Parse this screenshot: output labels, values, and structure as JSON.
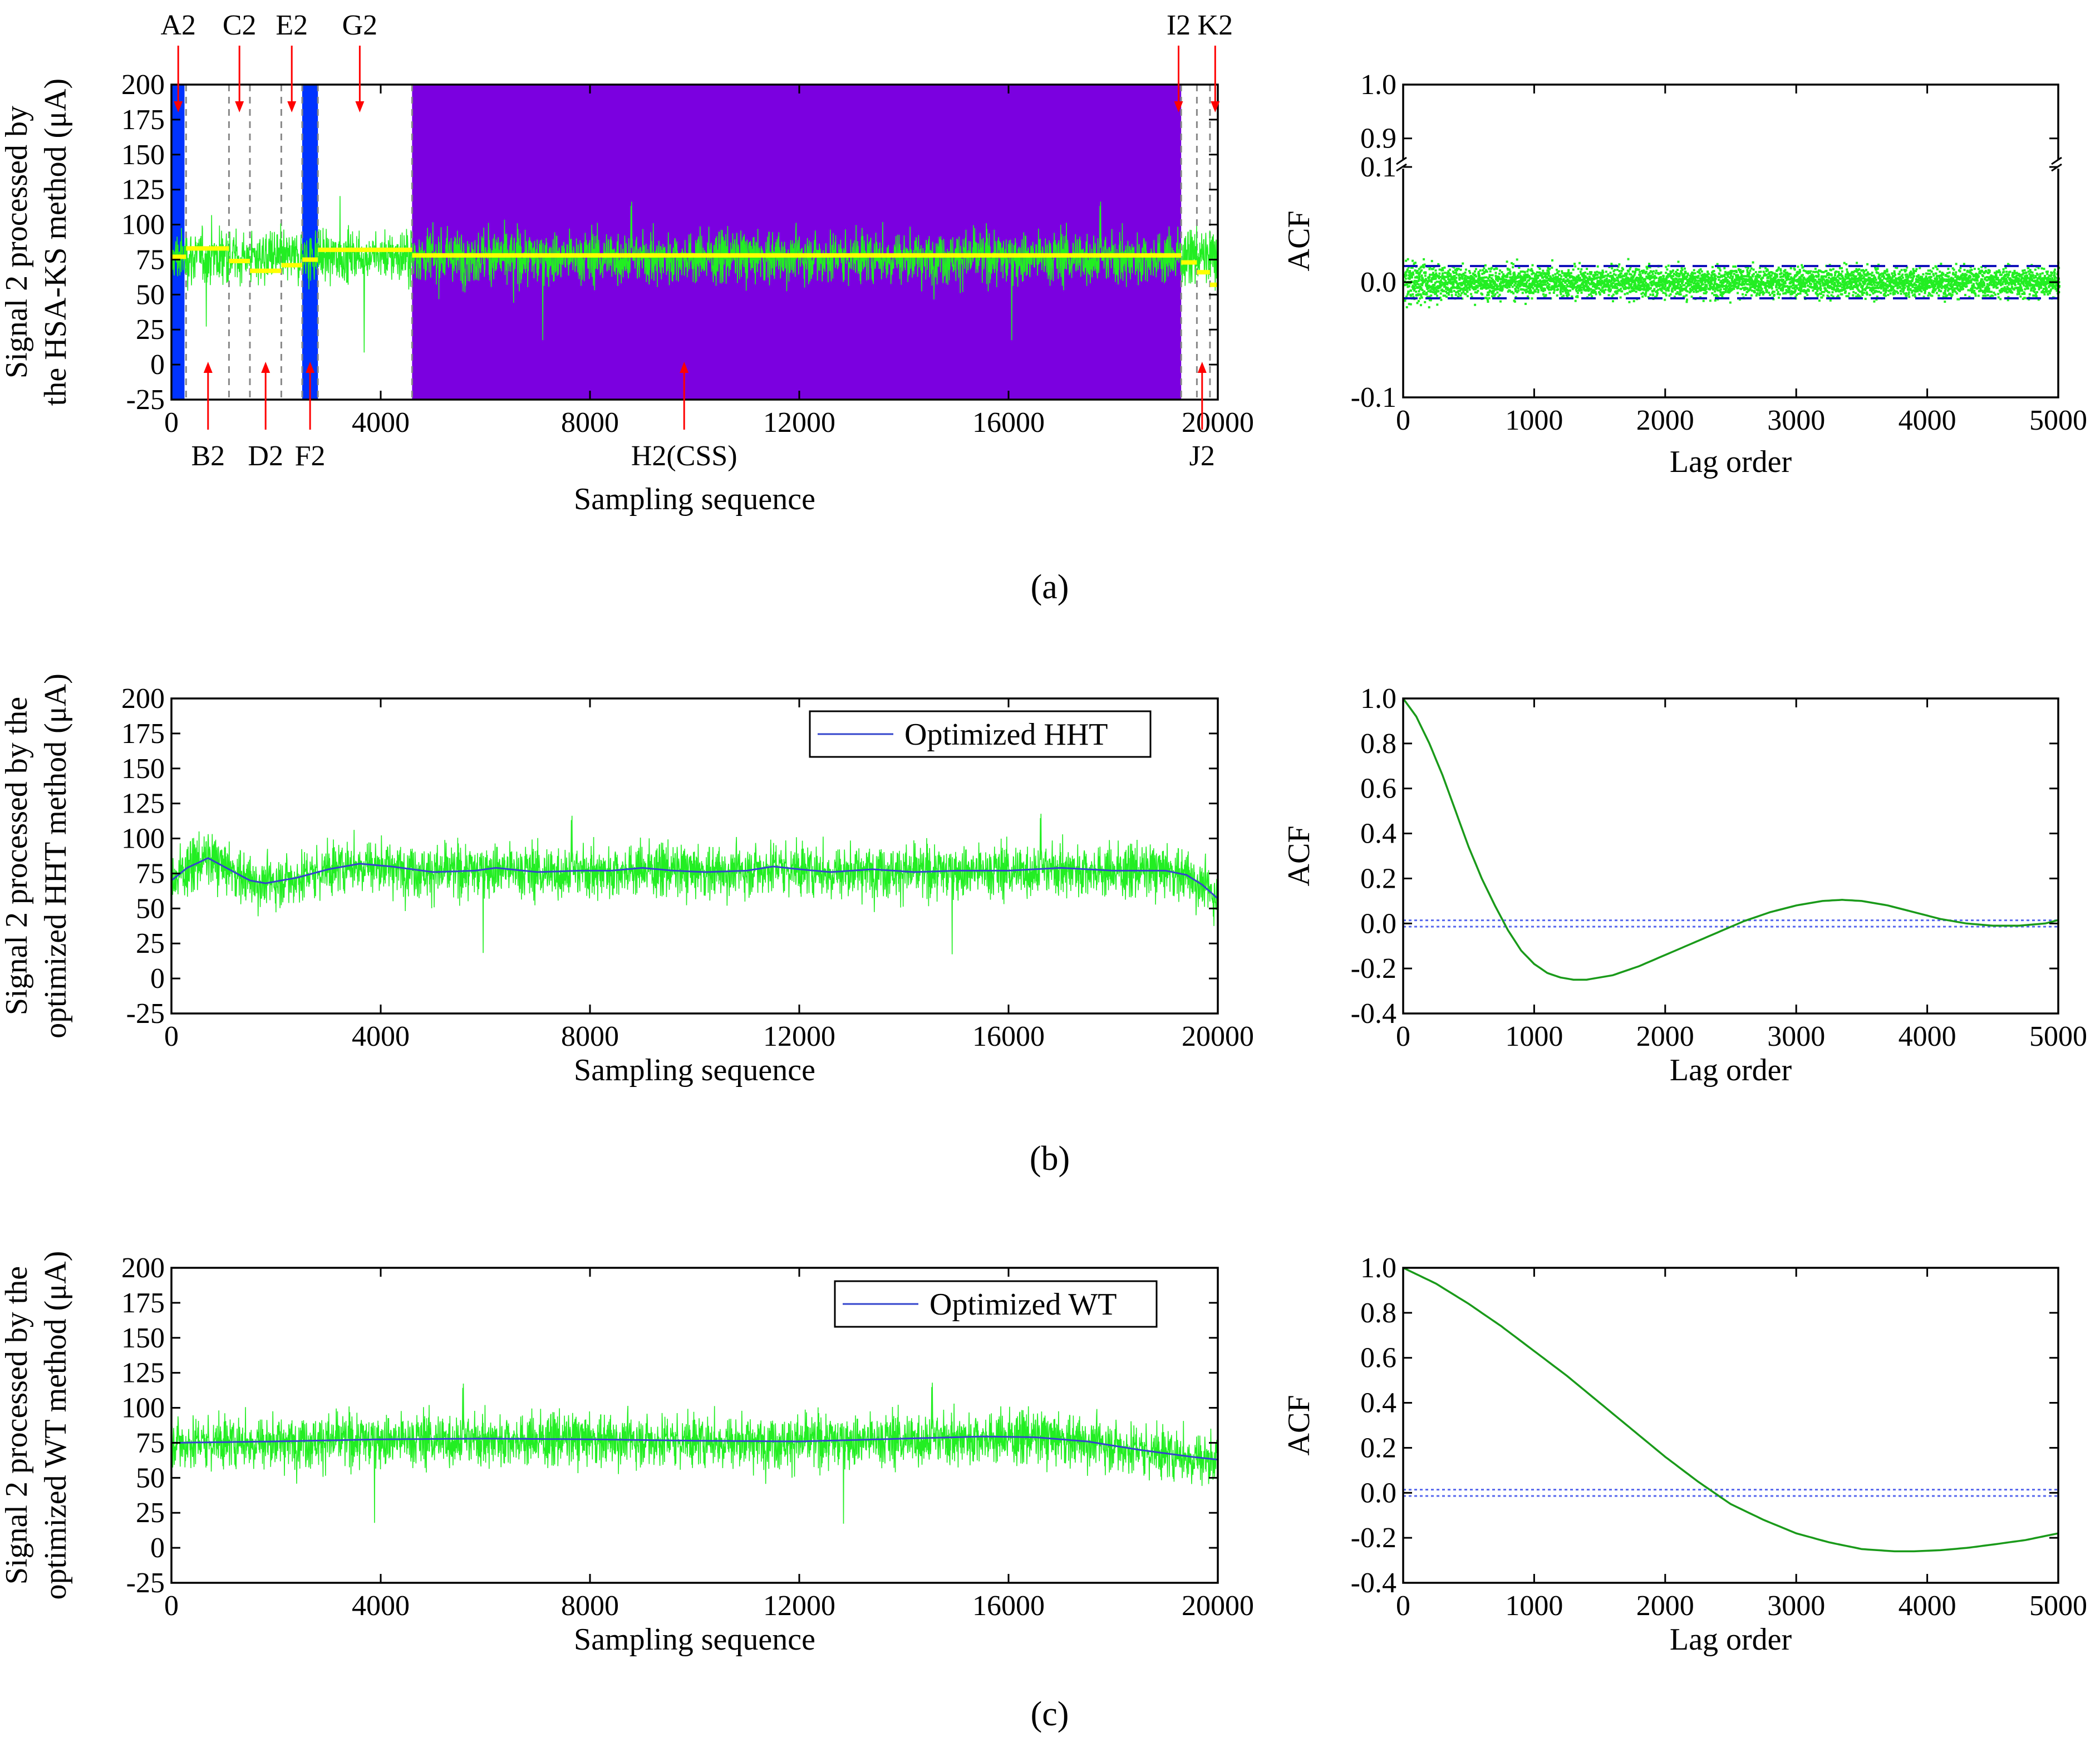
{
  "colors": {
    "signal": "#22ee22",
    "acf_green": "#1a9a1a",
    "hhtwt_trend": "#3344cc",
    "mean": "#ffff00",
    "css_region": "#7b00e0",
    "blue_region": "#0033ff",
    "conf_band": "#1111bb",
    "conf_dotted": "#5566ee",
    "arrow": "#ff0000"
  },
  "chart_data": [
    {
      "id": "a-left",
      "type": "line",
      "panel": "(a)",
      "ylabel_lines": [
        "Signal 2 processed by",
        "the HSA-KS method (μA)"
      ],
      "xlabel": "Sampling sequence",
      "xlim": [
        0,
        20000
      ],
      "ylim": [
        -25,
        200
      ],
      "xticks": [
        0,
        4000,
        8000,
        12000,
        16000,
        20000
      ],
      "yticks": [
        -25,
        0,
        25,
        50,
        75,
        100,
        125,
        150,
        175,
        200
      ],
      "signal_center": 77,
      "segments": [
        {
          "label": "A2",
          "start": 0,
          "end": 280,
          "mean": 77
        },
        {
          "label": "B2",
          "start": 280,
          "end": 1100,
          "mean": 83
        },
        {
          "label": "C2",
          "start": 1100,
          "end": 1500,
          "mean": 74
        },
        {
          "label": "D2",
          "start": 1500,
          "end": 2100,
          "mean": 67
        },
        {
          "label": "E2",
          "start": 2100,
          "end": 2500,
          "mean": 71
        },
        {
          "label": "F2",
          "start": 2500,
          "end": 2800,
          "mean": 75
        },
        {
          "label": "G2",
          "start": 2800,
          "end": 4600,
          "mean": 82
        },
        {
          "label": "H2(CSS)",
          "start": 4600,
          "end": 19300,
          "mean": 78
        },
        {
          "label": "I2",
          "start": 19300,
          "end": 19600,
          "mean": 73
        },
        {
          "label": "J2",
          "start": 19600,
          "end": 19850,
          "mean": 66
        },
        {
          "label": "K2",
          "start": 19850,
          "end": 20000,
          "mean": 57
        }
      ],
      "regions": [
        {
          "kind": "blue",
          "start": 0,
          "end": 250
        },
        {
          "kind": "blue",
          "start": 2500,
          "end": 2800
        },
        {
          "kind": "css",
          "start": 4600,
          "end": 19300
        }
      ],
      "boundaries": [
        280,
        1100,
        1500,
        2100,
        2500,
        2800,
        4600,
        19300,
        19600,
        19850
      ],
      "annotations_top": [
        {
          "label": "A2",
          "x": 130
        },
        {
          "label": "C2",
          "x": 1300
        },
        {
          "label": "E2",
          "x": 2300
        },
        {
          "label": "G2",
          "x": 3600
        },
        {
          "label": "I2",
          "x": 19250
        },
        {
          "label": "K2",
          "x": 19950
        }
      ],
      "annotations_bottom": [
        {
          "label": "B2",
          "x": 700
        },
        {
          "label": "D2",
          "x": 1800
        },
        {
          "label": "F2",
          "x": 2650
        },
        {
          "label": "H2(CSS)",
          "x": 9800
        },
        {
          "label": "J2",
          "x": 19700
        }
      ]
    },
    {
      "id": "a-right",
      "type": "scatter",
      "panel": "(a)",
      "ylabel": "ACF",
      "xlabel": "Lag order",
      "xlim": [
        0,
        5000
      ],
      "ylim": [
        -0.1,
        0.1
      ],
      "broken_ylim_upper": [
        0.85,
        1.0
      ],
      "xticks": [
        0,
        1000,
        2000,
        3000,
        4000,
        5000
      ],
      "yticks_lower": [
        -0.1,
        0.0,
        0.1
      ],
      "yticks_upper": [
        0.9,
        1.0
      ],
      "confidence_bound": 0.014,
      "points_spread": 0.016
    },
    {
      "id": "b-left",
      "type": "line",
      "panel": "(b)",
      "ylabel_lines": [
        "Signal 2 processed by the",
        "optimized HHT method (μA)"
      ],
      "xlabel": "Sampling sequence",
      "xlim": [
        0,
        20000
      ],
      "ylim": [
        -25,
        200
      ],
      "xticks": [
        0,
        4000,
        8000,
        12000,
        16000,
        20000
      ],
      "yticks": [
        -25,
        0,
        25,
        50,
        75,
        100,
        125,
        150,
        175,
        200
      ],
      "legend": "Optimized HHT",
      "signal_center": 77,
      "trend": {
        "x": [
          0,
          300,
          700,
          1100,
          1500,
          1800,
          2400,
          3000,
          3600,
          4200,
          5000,
          5800,
          6200,
          7000,
          7800,
          8400,
          9000,
          9600,
          10200,
          11000,
          11500,
          12000,
          12600,
          13400,
          14200,
          15000,
          16000,
          17000,
          18000,
          19000,
          19400,
          19700,
          20000
        ],
        "values": [
          70,
          79,
          86,
          78,
          70,
          68,
          72,
          78,
          82,
          80,
          76,
          77,
          79,
          76,
          77,
          77,
          79,
          77,
          76,
          77,
          80,
          78,
          76,
          78,
          76,
          77,
          77,
          79,
          77,
          77,
          74,
          67,
          57
        ]
      }
    },
    {
      "id": "b-right",
      "type": "line",
      "panel": "(b)",
      "ylabel": "ACF",
      "xlabel": "Lag order",
      "xlim": [
        0,
        5000
      ],
      "ylim": [
        -0.4,
        1.0
      ],
      "xticks": [
        0,
        1000,
        2000,
        3000,
        4000,
        5000
      ],
      "yticks": [
        -0.4,
        -0.2,
        0.0,
        0.2,
        0.4,
        0.6,
        0.8,
        1.0
      ],
      "confidence_bound": 0.014,
      "x": [
        0,
        100,
        200,
        300,
        400,
        500,
        600,
        700,
        800,
        900,
        1000,
        1100,
        1200,
        1300,
        1400,
        1500,
        1600,
        1800,
        2000,
        2200,
        2400,
        2600,
        2800,
        3000,
        3200,
        3350,
        3500,
        3700,
        3900,
        4100,
        4300,
        4500,
        4700,
        4900,
        5000
      ],
      "values": [
        1.0,
        0.92,
        0.8,
        0.66,
        0.5,
        0.34,
        0.2,
        0.08,
        -0.03,
        -0.12,
        -0.18,
        -0.22,
        -0.24,
        -0.25,
        -0.25,
        -0.24,
        -0.23,
        -0.19,
        -0.14,
        -0.09,
        -0.04,
        0.01,
        0.05,
        0.08,
        0.1,
        0.105,
        0.1,
        0.08,
        0.05,
        0.02,
        0.0,
        -0.01,
        -0.01,
        0.0,
        0.015
      ]
    },
    {
      "id": "c-left",
      "type": "line",
      "panel": "(c)",
      "ylabel_lines": [
        "Signal 2 processed by the",
        "optimized WT method (μA)"
      ],
      "xlabel": "Sampling sequence",
      "xlim": [
        0,
        20000
      ],
      "ylim": [
        -25,
        200
      ],
      "xticks": [
        0,
        4000,
        8000,
        12000,
        16000,
        20000
      ],
      "yticks": [
        -25,
        0,
        25,
        50,
        75,
        100,
        125,
        150,
        175,
        200
      ],
      "legend": "Optimized WT",
      "signal_center": 76,
      "trend": {
        "x": [
          0,
          2000,
          4000,
          6000,
          8000,
          10000,
          12000,
          14000,
          15500,
          16500,
          17500,
          18500,
          19500,
          20000
        ],
        "values": [
          75,
          76,
          77.5,
          78,
          77.5,
          76.5,
          76,
          78,
          79.5,
          79,
          76,
          70,
          65,
          63
        ]
      }
    },
    {
      "id": "c-right",
      "type": "line",
      "panel": "(c)",
      "ylabel": "ACF",
      "xlabel": "Lag order",
      "xlim": [
        0,
        5000
      ],
      "ylim": [
        -0.4,
        1.0
      ],
      "xticks": [
        0,
        1000,
        2000,
        3000,
        4000,
        5000
      ],
      "yticks": [
        -0.4,
        -0.2,
        0.0,
        0.2,
        0.4,
        0.6,
        0.8,
        1.0
      ],
      "confidence_bound": 0.014,
      "x": [
        0,
        250,
        500,
        750,
        1000,
        1250,
        1500,
        1750,
        2000,
        2250,
        2500,
        2750,
        3000,
        3250,
        3500,
        3750,
        3900,
        4100,
        4300,
        4500,
        4750,
        5000
      ],
      "values": [
        1.0,
        0.93,
        0.84,
        0.74,
        0.63,
        0.52,
        0.4,
        0.28,
        0.16,
        0.05,
        -0.05,
        -0.12,
        -0.18,
        -0.22,
        -0.25,
        -0.26,
        -0.26,
        -0.255,
        -0.245,
        -0.23,
        -0.21,
        -0.18
      ]
    }
  ],
  "panel_labels": [
    "(a)",
    "(b)",
    "(c)"
  ]
}
